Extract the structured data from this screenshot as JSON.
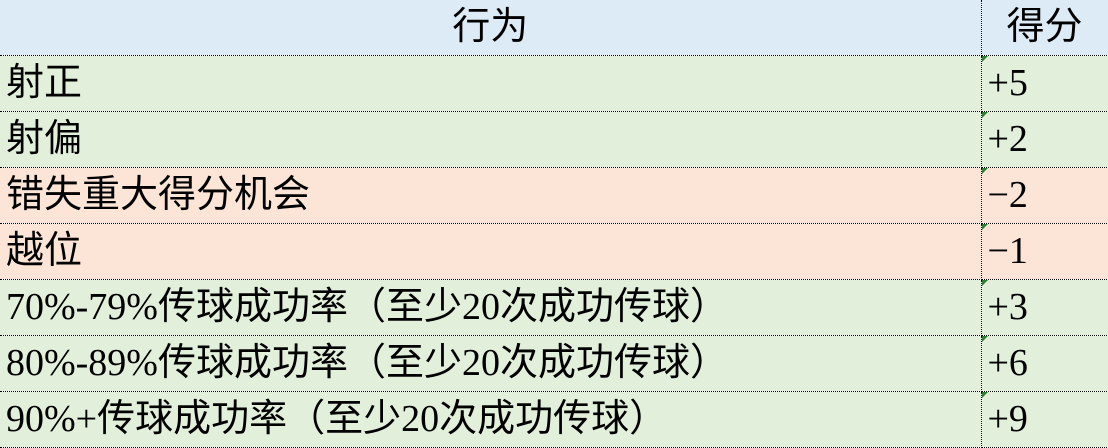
{
  "colors": {
    "header_bg": "#DDEBF7",
    "positive_bg": "#E2EFDA",
    "negative_bg": "#FCE4D6"
  },
  "header": {
    "action": "行为",
    "score": "得分"
  },
  "rows": [
    {
      "action": "射正",
      "score": "+5",
      "type": "positive"
    },
    {
      "action": "射偏",
      "score": "+2",
      "type": "positive"
    },
    {
      "action": "错失重大得分机会",
      "score": "−2",
      "type": "negative"
    },
    {
      "action": "越位",
      "score": "−1",
      "type": "negative"
    },
    {
      "action": "70%-79%传球成功率（至少20次成功传球）",
      "score": "+3",
      "type": "positive"
    },
    {
      "action": "80%-89%传球成功率（至少20次成功传球）",
      "score": "+6",
      "type": "positive"
    },
    {
      "action": "90%+传球成功率（至少20次成功传球）",
      "score": "+9",
      "type": "positive"
    }
  ]
}
